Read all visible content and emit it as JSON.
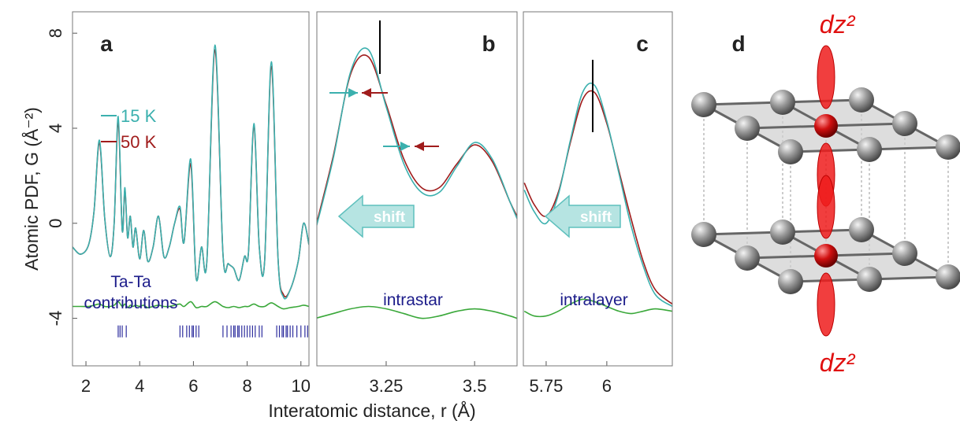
{
  "ylabel": "Atomic PDF, G (Å⁻²)",
  "xlabel": "Interatomic distance, r (Å)",
  "chart_data": [
    {
      "type": "line",
      "panel": "a",
      "xlim": [
        1.5,
        10.3
      ],
      "ylim": [
        -6,
        8.9
      ],
      "xticks": [
        2,
        4,
        6,
        8,
        10
      ],
      "yticks": [
        -4,
        0,
        4,
        8
      ],
      "legend": "left",
      "x": [
        1.5,
        1.8,
        2.1,
        2.3,
        2.5,
        2.7,
        2.9,
        3.05,
        3.2,
        3.35,
        3.45,
        3.55,
        3.65,
        3.75,
        3.85,
        4.0,
        4.15,
        4.3,
        4.5,
        4.7,
        4.9,
        5.1,
        5.3,
        5.5,
        5.65,
        5.9,
        6.1,
        6.3,
        6.5,
        6.8,
        7.1,
        7.3,
        7.5,
        7.7,
        7.9,
        8.05,
        8.25,
        8.45,
        8.65,
        8.9,
        9.15,
        9.35,
        9.6,
        9.9,
        10.1,
        10.3
      ],
      "series": [
        {
          "name": "15 K",
          "color": "#3bb0ae",
          "values": [
            -1.0,
            -1.3,
            -0.9,
            0.5,
            3.5,
            0.2,
            -1.4,
            0.0,
            4.5,
            -0.3,
            1.5,
            -0.6,
            0.3,
            -1.0,
            -0.2,
            -1.5,
            -0.3,
            -1.6,
            -1.0,
            0.3,
            -1.4,
            -1.0,
            0.0,
            0.7,
            -0.8,
            2.7,
            -2.3,
            -1.0,
            -1.6,
            7.5,
            -1.3,
            -1.7,
            -1.9,
            -2.4,
            -1.4,
            -1.2,
            4.2,
            -1.0,
            -1.6,
            6.8,
            -1.5,
            -3.1,
            -2.8,
            -1.6,
            0.0,
            -0.9
          ]
        },
        {
          "name": "50 K",
          "color": "#a01c1c",
          "values": [
            -1.0,
            -1.3,
            -0.9,
            0.5,
            3.4,
            0.2,
            -1.4,
            0.0,
            4.3,
            -0.3,
            1.4,
            -0.6,
            0.3,
            -1.0,
            -0.2,
            -1.5,
            -0.3,
            -1.6,
            -1.0,
            0.3,
            -1.4,
            -1.0,
            0.0,
            0.6,
            -0.8,
            2.5,
            -2.3,
            -1.0,
            -1.6,
            7.3,
            -1.3,
            -1.7,
            -1.9,
            -2.4,
            -1.4,
            -1.2,
            4.1,
            -1.0,
            -1.6,
            6.6,
            -1.5,
            -3.0,
            -2.8,
            -1.6,
            0.0,
            -0.9
          ]
        },
        {
          "color": "#3aa83a",
          "values": [
            -3.5,
            -3.5,
            -3.5,
            -3.45,
            -3.4,
            -3.5,
            -3.5,
            -3.45,
            -3.3,
            -3.5,
            -3.4,
            -3.55,
            -3.45,
            -3.5,
            -3.45,
            -3.5,
            -3.45,
            -3.55,
            -3.5,
            -3.45,
            -3.5,
            -3.5,
            -3.45,
            -3.4,
            -3.5,
            -3.3,
            -3.55,
            -3.5,
            -3.5,
            -3.3,
            -3.5,
            -3.55,
            -3.5,
            -3.55,
            -3.5,
            -3.5,
            -3.4,
            -3.5,
            -3.5,
            -3.35,
            -3.5,
            -3.6,
            -3.55,
            -3.5,
            -3.45,
            -3.5
          ]
        }
      ],
      "rug": {
        "color": "#2e2e9e",
        "x": [
          3.2,
          3.27,
          3.35,
          3.5,
          5.5,
          5.6,
          5.75,
          5.85,
          5.95,
          6.0,
          6.1,
          6.2,
          7.1,
          7.25,
          7.4,
          7.5,
          7.55,
          7.65,
          7.7,
          7.8,
          7.9,
          8.0,
          8.1,
          8.2,
          8.3,
          8.45,
          8.55,
          9.1,
          9.2,
          9.3,
          9.35,
          9.45,
          9.5,
          9.6,
          9.7,
          9.85,
          10.0,
          10.15,
          10.25
        ]
      },
      "annotations": [
        "Ta-Ta",
        "contributions"
      ]
    },
    {
      "type": "line",
      "panel": "b",
      "xlim": [
        3.054,
        3.62
      ],
      "ylim": [
        -6,
        8.9
      ],
      "xticks": [
        3.25,
        3.5
      ],
      "x": [
        3.05,
        3.1,
        3.15,
        3.2,
        3.25,
        3.3,
        3.35,
        3.4,
        3.45,
        3.5,
        3.55,
        3.6,
        3.62
      ],
      "series": [
        {
          "color": "#3bb0ae",
          "values": [
            -0.3,
            2.7,
            6.4,
            7.3,
            4.9,
            2.5,
            1.3,
            1.3,
            2.4,
            3.4,
            2.7,
            0.9,
            0.2
          ]
        },
        {
          "color": "#a01c1c",
          "values": [
            -0.2,
            2.8,
            6.3,
            7.0,
            5.0,
            2.7,
            1.5,
            1.5,
            2.5,
            3.3,
            2.6,
            0.9,
            0.3
          ]
        },
        {
          "color": "#3aa83a",
          "values": [
            -4.0,
            -3.8,
            -3.6,
            -3.5,
            -3.6,
            -3.8,
            -4.0,
            -3.9,
            -3.7,
            -3.6,
            -3.7,
            -3.9,
            -4.0
          ]
        }
      ],
      "annotations": [
        "intrastar"
      ],
      "arrow_label": "shift"
    },
    {
      "type": "line",
      "panel": "c",
      "xlim": [
        5.656,
        6.27
      ],
      "ylim": [
        -6,
        8.9
      ],
      "xticks": [
        5.75,
        6
      ],
      "x": [
        5.66,
        5.7,
        5.75,
        5.8,
        5.85,
        5.9,
        5.95,
        6.0,
        6.05,
        6.1,
        6.15,
        6.2,
        6.27
      ],
      "series": [
        {
          "color": "#3bb0ae",
          "values": [
            1.4,
            0.5,
            0.0,
            1.2,
            3.5,
            5.5,
            5.8,
            4.3,
            2.1,
            -0.1,
            -1.8,
            -3.0,
            -3.5
          ]
        },
        {
          "color": "#a01c1c",
          "values": [
            1.7,
            0.8,
            0.3,
            1.3,
            3.4,
            5.2,
            5.5,
            4.2,
            2.2,
            0.2,
            -1.6,
            -2.8,
            -3.4
          ]
        },
        {
          "color": "#3aa83a",
          "values": [
            -3.7,
            -3.9,
            -3.9,
            -3.7,
            -3.4,
            -3.2,
            -3.3,
            -3.5,
            -3.7,
            -3.8,
            -3.7,
            -3.6,
            -3.7
          ]
        }
      ],
      "annotations": [
        "intralayer"
      ],
      "arrow_label": "shift"
    }
  ],
  "diagram": {
    "panel": "d",
    "orbital_labels": [
      "dz²",
      "dz²"
    ]
  }
}
